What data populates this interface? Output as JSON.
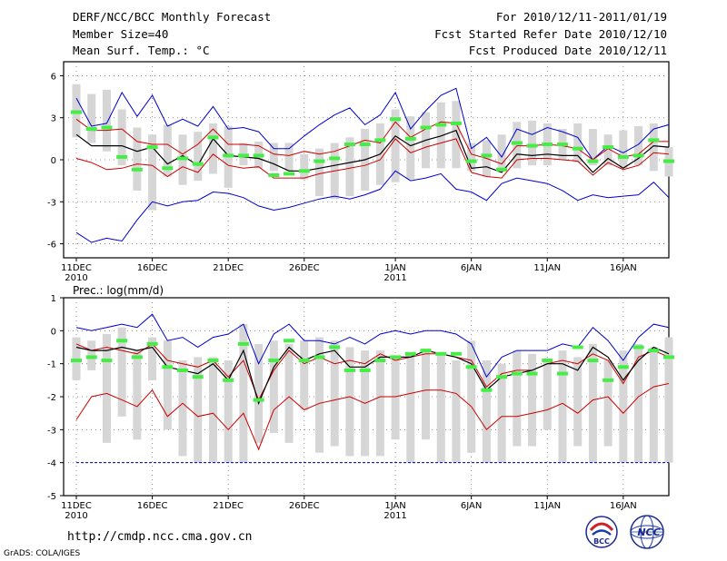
{
  "header": {
    "title": "DERF/NCC/BCC Monthly Forecast",
    "member_size": "Member Size=40",
    "variable": "Mean Surf. Temp.: °C",
    "forecast_period": "For 2010/12/11-2011/01/19",
    "start_date": "Fcst Started Refer Date 2010/12/10",
    "produced_date": "Fcst Produced Date 2010/12/11"
  },
  "footer": {
    "url": "http://cmdp.ncc.cma.gov.cn",
    "credit": "GrADS: COLA/IGES",
    "logo_left_text": "BCC",
    "logo_right_text": "NCC"
  },
  "chart_data": [
    {
      "type": "line",
      "title": "Mean Surf. Temp.: °C",
      "xlabel": "",
      "ylabel": "",
      "ylim": [
        -7,
        7
      ],
      "yticks": [
        -6,
        -3,
        0,
        3,
        6
      ],
      "ytick_labels": [
        "-6",
        "-3",
        "0",
        "3",
        "6"
      ],
      "x_days": 40,
      "grid": true,
      "x_tick_days": [
        1,
        6,
        11,
        16,
        22,
        27,
        32,
        37
      ],
      "x_tick_labels": [
        "11DEC",
        "16DEC",
        "21DEC",
        "26DEC",
        "1JAN",
        "6JAN",
        "11JAN",
        "16JAN"
      ],
      "x_year_labels": [
        {
          "day": 1,
          "text": "2010"
        },
        {
          "day": 22,
          "text": "2011"
        }
      ],
      "box_range": {
        "low": [
          1.6,
          1.2,
          0.6,
          -0.4,
          -2.2,
          -3.6,
          -1.2,
          -1.8,
          -1.5,
          -1.0,
          -2.0,
          -0.4,
          -0.6,
          -0.8,
          -0.8,
          -1.4,
          -2.6,
          -2.8,
          -2.6,
          -2.2,
          -1.8,
          -1.6,
          -1.4,
          -0.6,
          -0.6,
          -0.6,
          -0.8,
          -1.2,
          -0.8,
          -0.6,
          -0.4,
          -0.4,
          0.0,
          -0.2,
          -0.4,
          -0.4,
          -0.6,
          -0.4,
          -0.8,
          -1.2
        ],
        "high": [
          5.4,
          4.7,
          5.0,
          3.6,
          2.3,
          1.8,
          2.5,
          1.8,
          2.0,
          2.6,
          2.4,
          1.2,
          1.3,
          1.2,
          1.2,
          0.4,
          0.8,
          1.2,
          1.6,
          2.2,
          2.6,
          3.6,
          3.1,
          3.4,
          4.1,
          4.2,
          1.2,
          1.4,
          1.8,
          2.7,
          2.8,
          2.6,
          2.2,
          2.6,
          2.2,
          1.8,
          2.1,
          2.4,
          2.6,
          0.9
        ]
      },
      "series": [
        {
          "name": "max",
          "color": "#0000cc",
          "values": [
            4.4,
            2.4,
            2.6,
            4.8,
            3.1,
            4.6,
            2.4,
            2.9,
            2.4,
            3.8,
            2.2,
            2.3,
            2.0,
            0.8,
            0.8,
            1.7,
            2.5,
            3.2,
            3.7,
            2.5,
            3.2,
            4.8,
            2.2,
            3.5,
            4.6,
            5.1,
            0.8,
            1.6,
            0.2,
            2.2,
            1.8,
            2.3,
            2.0,
            1.6,
            0.0,
            1.0,
            0.5,
            1.1,
            2.2,
            2.5
          ]
        },
        {
          "name": "upper",
          "color": "#cc0000",
          "values": [
            2.9,
            2.1,
            2.1,
            2.2,
            1.3,
            1.1,
            1.1,
            0.4,
            1.1,
            2.2,
            1.1,
            1.1,
            1.0,
            0.4,
            0.3,
            0.6,
            0.4,
            0.6,
            1.0,
            1.4,
            1.2,
            2.7,
            1.6,
            2.2,
            2.7,
            2.6,
            0.4,
            0.1,
            -0.3,
            1.0,
            1.0,
            1.1,
            1.0,
            0.8,
            0.0,
            0.8,
            0.2,
            0.4,
            1.3,
            1.3
          ]
        },
        {
          "name": "mean",
          "color": "#000000",
          "values": [
            1.8,
            1.0,
            1.0,
            1.0,
            0.6,
            0.9,
            -0.3,
            0.3,
            -0.4,
            1.5,
            0.3,
            0.2,
            0.1,
            -0.3,
            -0.8,
            -0.8,
            -0.6,
            -0.4,
            -0.2,
            0.0,
            0.4,
            1.7,
            1.0,
            1.4,
            1.7,
            2.1,
            -0.6,
            -0.5,
            -0.9,
            0.4,
            0.3,
            0.4,
            0.3,
            0.3,
            -0.9,
            0.1,
            -0.6,
            0.1,
            1.0,
            0.9
          ]
        },
        {
          "name": "lower",
          "color": "#cc0000",
          "values": [
            0.1,
            -0.2,
            -0.7,
            -0.6,
            -0.3,
            -0.4,
            -1.2,
            -0.5,
            -0.9,
            0.4,
            -0.4,
            -0.6,
            -0.5,
            -1.3,
            -1.3,
            -1.3,
            -1.0,
            -0.8,
            -0.6,
            -0.4,
            0.0,
            1.5,
            0.5,
            0.9,
            1.2,
            1.5,
            -0.9,
            -1.2,
            -1.3,
            0.0,
            0.1,
            0.1,
            0.0,
            -0.1,
            -1.1,
            -0.2,
            -0.7,
            -0.4,
            0.5,
            0.4
          ]
        },
        {
          "name": "min",
          "color": "#0000cc",
          "values": [
            -5.2,
            -5.9,
            -5.6,
            -5.8,
            -4.3,
            -3.0,
            -3.3,
            -3.0,
            -2.9,
            -2.3,
            -2.4,
            -2.7,
            -3.3,
            -3.6,
            -3.4,
            -3.1,
            -2.8,
            -2.6,
            -2.8,
            -2.5,
            -2.1,
            -0.8,
            -1.5,
            -1.3,
            -1.0,
            -2.1,
            -2.3,
            -2.9,
            -1.7,
            -1.3,
            -1.5,
            -1.7,
            -2.2,
            -2.9,
            -2.5,
            -2.7,
            -2.6,
            -2.5,
            -1.6,
            -2.7
          ]
        }
      ],
      "observed_markers": [
        3.4,
        2.2,
        2.3,
        0.2,
        -0.7,
        0.9,
        -0.6,
        0.1,
        -0.3,
        1.6,
        0.3,
        0.3,
        0.3,
        -1.1,
        -1.0,
        -0.8,
        -0.1,
        0.1,
        1.1,
        1.1,
        1.4,
        2.9,
        1.5,
        2.3,
        2.5,
        2.6,
        -0.1,
        0.3,
        -0.7,
        1.2,
        1.0,
        1.1,
        1.1,
        0.8,
        -0.1,
        0.9,
        0.2,
        0.3,
        1.4,
        -0.1
      ]
    },
    {
      "type": "line",
      "title": "Prec.: log(mm/d)",
      "xlabel": "",
      "ylabel": "",
      "ylim": [
        -5,
        1
      ],
      "yticks": [
        -5,
        -4,
        -3,
        -2,
        -1,
        0,
        1
      ],
      "ytick_labels": [
        "-5",
        "-4",
        "-3",
        "-2",
        "-1",
        "0",
        "1"
      ],
      "x_days": 40,
      "grid": true,
      "x_tick_days": [
        1,
        6,
        11,
        16,
        22,
        27,
        32,
        37
      ],
      "x_tick_labels": [
        "11DEC",
        "16DEC",
        "21DEC",
        "26DEC",
        "1JAN",
        "6JAN",
        "11JAN",
        "16JAN"
      ],
      "x_year_labels": [
        {
          "day": 1,
          "text": "2010"
        },
        {
          "day": 22,
          "text": "2011"
        }
      ],
      "baseline": -4,
      "box_range": {
        "low": [
          -1.5,
          -1.2,
          -3.4,
          -2.6,
          -3.3,
          -1.5,
          -3.0,
          -3.8,
          -4.0,
          -4.0,
          -4.0,
          -4.0,
          -3.4,
          -3.1,
          -3.4,
          -2.4,
          -3.7,
          -3.5,
          -3.8,
          -3.8,
          -3.8,
          -3.3,
          -4.0,
          -3.3,
          -4.0,
          -4.0,
          -3.7,
          -4.0,
          -4.0,
          -3.5,
          -3.5,
          -3.0,
          -4.0,
          -3.5,
          -4.0,
          -3.5,
          -4.0,
          -4.0,
          -4.0,
          -4.0
        ],
        "high": [
          -0.2,
          -0.3,
          -0.1,
          0.1,
          -0.6,
          -0.2,
          -0.3,
          -0.9,
          -0.8,
          -0.8,
          -0.9,
          0.2,
          -0.4,
          -0.3,
          -0.4,
          -0.3,
          -0.2,
          -0.3,
          -0.5,
          -0.6,
          -0.6,
          -0.8,
          -0.7,
          -0.6,
          -0.7,
          -0.9,
          -0.3,
          -0.9,
          -1.0,
          -0.6,
          -0.7,
          -0.9,
          -0.6,
          -0.8,
          -0.4,
          -0.9,
          -0.6,
          -0.4,
          -0.5,
          -0.2
        ]
      },
      "series": [
        {
          "name": "max",
          "color": "#0000cc",
          "values": [
            0.1,
            0.0,
            0.1,
            0.2,
            0.1,
            0.5,
            -0.3,
            -0.2,
            -0.5,
            -0.2,
            -0.1,
            0.2,
            -1.0,
            -0.1,
            0.2,
            -0.3,
            -0.3,
            -0.4,
            -0.2,
            -0.4,
            -0.1,
            0.0,
            -0.1,
            0.0,
            0.0,
            -0.1,
            -0.4,
            -1.4,
            -0.8,
            -0.6,
            -0.6,
            -0.6,
            -0.4,
            -0.5,
            0.1,
            -0.3,
            -0.9,
            -0.2,
            0.2,
            0.1
          ]
        },
        {
          "name": "upper",
          "color": "#cc0000",
          "values": [
            -0.4,
            -0.6,
            -0.5,
            -0.6,
            -0.7,
            -0.4,
            -0.9,
            -1.0,
            -1.1,
            -0.9,
            -1.4,
            -0.9,
            -2.1,
            -1.2,
            -0.6,
            -1.0,
            -0.8,
            -1.0,
            -0.9,
            -1.0,
            -0.7,
            -0.9,
            -0.8,
            -0.7,
            -0.7,
            -0.8,
            -0.9,
            -1.7,
            -1.3,
            -1.2,
            -1.2,
            -1.0,
            -0.9,
            -1.0,
            -0.7,
            -0.9,
            -1.6,
            -0.8,
            -0.6,
            -0.8
          ]
        },
        {
          "name": "mean",
          "color": "#000000",
          "values": [
            -0.5,
            -0.6,
            -0.6,
            -0.5,
            -0.6,
            -0.5,
            -1.1,
            -1.2,
            -1.3,
            -1.0,
            -1.5,
            -0.6,
            -2.2,
            -1.1,
            -0.5,
            -0.9,
            -0.7,
            -0.6,
            -1.1,
            -1.1,
            -0.8,
            -0.8,
            -0.8,
            -0.6,
            -0.7,
            -0.8,
            -1.0,
            -1.8,
            -1.4,
            -1.3,
            -1.2,
            -1.0,
            -1.0,
            -1.2,
            -0.5,
            -0.8,
            -1.5,
            -0.9,
            -0.5,
            -0.7
          ]
        },
        {
          "name": "lower",
          "color": "#cc0000",
          "values": [
            -2.7,
            -2.0,
            -1.9,
            -2.1,
            -2.3,
            -1.8,
            -2.6,
            -2.2,
            -2.6,
            -2.5,
            -3.0,
            -2.5,
            -3.6,
            -2.4,
            -2.0,
            -2.4,
            -2.2,
            -2.1,
            -2.0,
            -2.2,
            -2.0,
            -2.0,
            -1.9,
            -1.8,
            -1.8,
            -1.9,
            -2.3,
            -3.0,
            -2.6,
            -2.6,
            -2.5,
            -2.4,
            -2.2,
            -2.5,
            -2.1,
            -2.0,
            -2.5,
            -2.0,
            -1.7,
            -1.6
          ]
        },
        {
          "name": "min",
          "color": "#0000cc",
          "values": [
            -4.0,
            -4.0,
            -4.0,
            -4.0,
            -4.0,
            -4.0,
            -4.0,
            -4.0,
            -4.0,
            -4.0,
            -4.0,
            -4.0,
            -4.0,
            -4.0,
            -4.0,
            -4.0,
            -4.0,
            -4.0,
            -4.0,
            -4.0,
            -4.0,
            -4.0,
            -4.0,
            -4.0,
            -4.0,
            -4.0,
            -4.0,
            -4.0,
            -4.0,
            -4.0,
            -4.0,
            -4.0,
            -4.0,
            -4.0,
            -4.0,
            -4.0,
            -4.0,
            -4.0,
            -4.0,
            -4.0
          ]
        }
      ],
      "observed_markers": [
        -0.9,
        -0.8,
        -0.9,
        -0.3,
        -0.8,
        -0.4,
        -1.1,
        -1.2,
        -1.4,
        -0.9,
        -1.5,
        -0.4,
        -2.1,
        -0.9,
        -0.3,
        -0.9,
        -0.8,
        -0.5,
        -1.2,
        -1.2,
        -0.9,
        -0.8,
        -0.7,
        -0.6,
        -0.7,
        -0.7,
        -1.1,
        -1.8,
        -1.4,
        -1.3,
        -1.3,
        -0.9,
        -1.3,
        -0.5,
        -0.9,
        -1.5,
        -1.1,
        -0.5,
        -0.6,
        -0.8
      ]
    }
  ]
}
